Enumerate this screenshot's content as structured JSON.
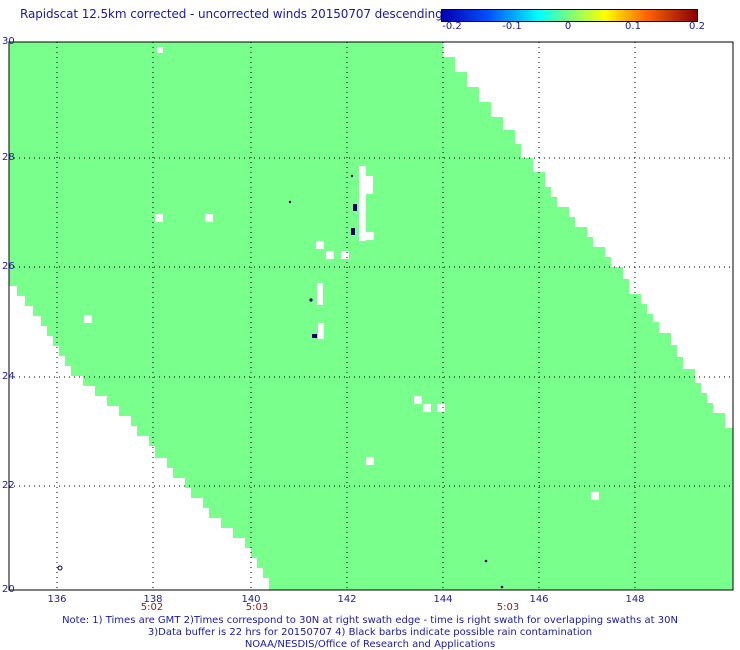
{
  "title": "Rapidscat 12.5km corrected - uncorrected winds 20150707 descending",
  "colorbar": {
    "ticks": [
      "-0.2",
      "-0.1",
      "0",
      "0.1",
      "0.2"
    ],
    "colors": [
      "#0000b0",
      "#0050ff",
      "#00ffff",
      "#7aff7a",
      "#ffff00",
      "#ff6600",
      "#8b0000"
    ]
  },
  "map": {
    "lat_labels": [
      "30",
      "28",
      "26",
      "24",
      "22",
      "20"
    ],
    "lon_labels": [
      "136",
      "138",
      "140",
      "142",
      "144",
      "146",
      "148"
    ],
    "time_labels": [
      "5:02",
      "5:03",
      "5:03"
    ],
    "swath_color": "#78ff8c",
    "missing_color": "#ffffff",
    "rain_marker_color": "#000066"
  },
  "notes": [
    "Note: 1) Times are GMT 2)Times correspond to 30N at right swath edge - time is right swath for overlapping swaths at 30N",
    "3)Data buffer is 22 hrs for 20150707 4) Black barbs indicate possible rain contamination",
    "NOAA/NESDIS/Office of Research and Applications"
  ]
}
